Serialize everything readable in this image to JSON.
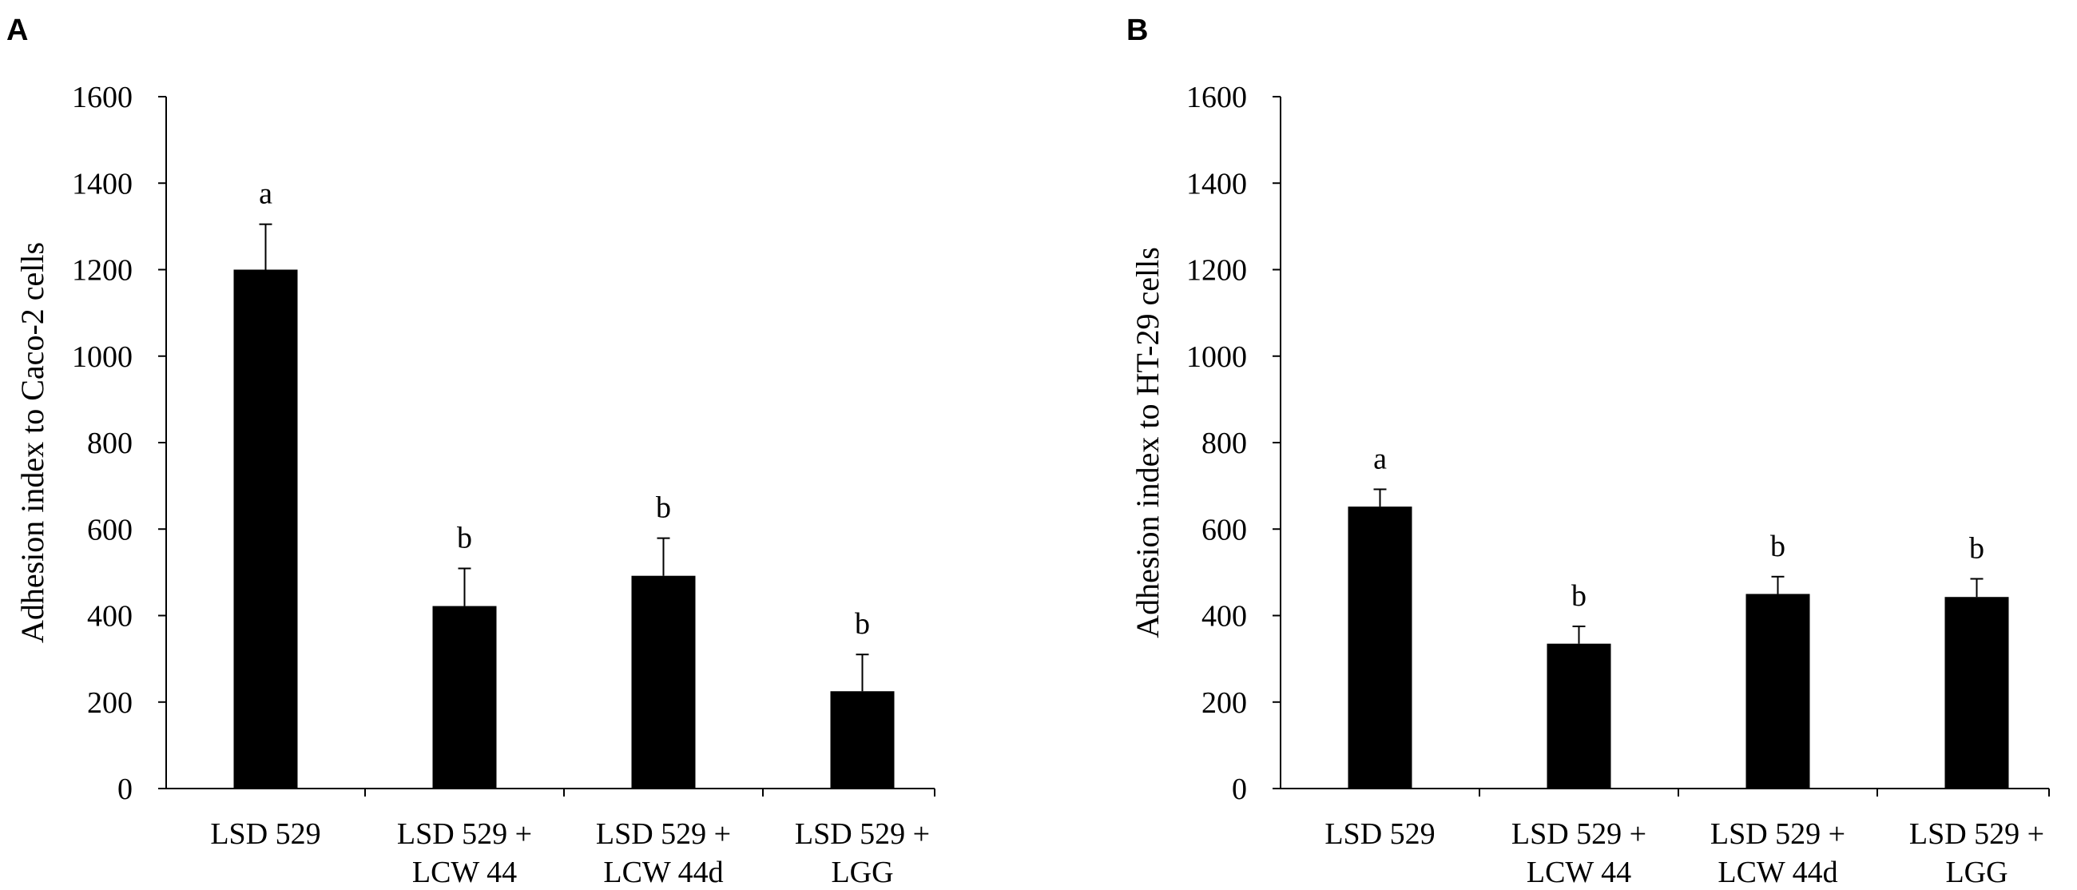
{
  "chart_data": [
    {
      "type": "bar",
      "panel": "A",
      "ylabel": "Adhesion index to Caco-2 cells",
      "xlabel": "",
      "ylim": [
        0,
        1600
      ],
      "yticks": [
        0,
        200,
        400,
        600,
        800,
        1000,
        1200,
        1400,
        1600
      ],
      "categories": [
        [
          "LSD 529"
        ],
        [
          "LSD 529 +",
          "LCW 44"
        ],
        [
          "LSD 529 +",
          "LCW 44d"
        ],
        [
          "LSD 529 +",
          "LGG"
        ]
      ],
      "values": [
        1200,
        422,
        492,
        225
      ],
      "errors": [
        105,
        87,
        87,
        85
      ],
      "significance": [
        "a",
        "b",
        "b",
        "b"
      ],
      "bar_color": "#000000",
      "grid": false
    },
    {
      "type": "bar",
      "panel": "B",
      "ylabel": "Adhesion index to HT-29 cells",
      "xlabel": "",
      "ylim": [
        0,
        1600
      ],
      "yticks": [
        0,
        200,
        400,
        600,
        800,
        1000,
        1200,
        1400,
        1600
      ],
      "categories": [
        [
          "LSD 529"
        ],
        [
          "LSD 529 +",
          "LCW 44"
        ],
        [
          "LSD 529 +",
          "LCW 44d"
        ],
        [
          "LSD 529 +",
          "LGG"
        ]
      ],
      "values": [
        652,
        335,
        450,
        443
      ],
      "errors": [
        40,
        40,
        40,
        42
      ],
      "significance": [
        "a",
        "b",
        "b",
        "b"
      ],
      "bar_color": "#000000",
      "grid": false
    }
  ]
}
